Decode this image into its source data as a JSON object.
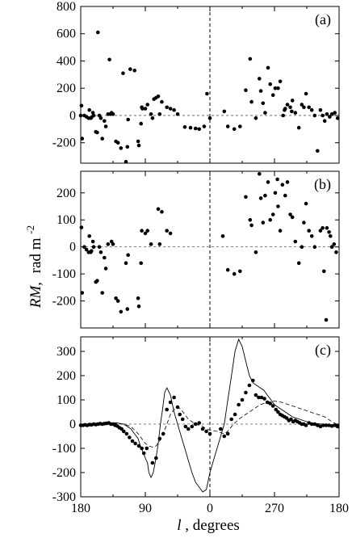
{
  "figure": {
    "y_axis_title_main": "RM,",
    "y_axis_title_unit": "rad m",
    "y_axis_title_exp": "-2",
    "x_axis_title_main": "l",
    "x_axis_title_rest": ", degrees"
  },
  "chart_data": [
    {
      "type": "scatter",
      "panel_label": "(a)",
      "xlabel": "l, degrees",
      "ylabel": "RM, rad m^-2",
      "x_ticks": [
        "180",
        "90",
        "0",
        "270",
        "180"
      ],
      "ylim": [
        -350,
        800
      ],
      "y_ticks": [
        -200,
        0,
        200,
        400,
        600,
        800
      ],
      "reference_lines": {
        "x": 0,
        "y": 0,
        "style": "dashed"
      },
      "points": [
        [
          179,
          72
        ],
        [
          178,
          -170
        ],
        [
          175,
          0
        ],
        [
          172,
          -10
        ],
        [
          169,
          -20
        ],
        [
          168,
          40
        ],
        [
          166,
          -20
        ],
        [
          165,
          -15
        ],
        [
          163,
          20
        ],
        [
          162,
          0
        ],
        [
          159,
          -120
        ],
        [
          157,
          -125
        ],
        [
          156,
          610
        ],
        [
          154,
          0
        ],
        [
          152,
          -20
        ],
        [
          150,
          -170
        ],
        [
          147,
          -40
        ],
        [
          145,
          -80
        ],
        [
          142,
          10
        ],
        [
          140,
          410
        ],
        [
          139,
          10
        ],
        [
          137,
          20
        ],
        [
          135,
          10
        ],
        [
          131,
          -190
        ],
        [
          128,
          -200
        ],
        [
          124,
          -240
        ],
        [
          121,
          310
        ],
        [
          117,
          -340
        ],
        [
          115,
          -230
        ],
        [
          114,
          -30
        ],
        [
          111,
          340
        ],
        [
          105,
          330
        ],
        [
          100,
          -190
        ],
        [
          99,
          -220
        ],
        [
          96,
          -60
        ],
        [
          95,
          60
        ],
        [
          94,
          50
        ],
        [
          90,
          50
        ],
        [
          87,
          80
        ],
        [
          82,
          10
        ],
        [
          80,
          -20
        ],
        [
          78,
          120
        ],
        [
          75,
          130
        ],
        [
          72,
          140
        ],
        [
          70,
          10
        ],
        [
          67,
          100
        ],
        [
          60,
          60
        ],
        [
          55,
          50
        ],
        [
          50,
          40
        ],
        [
          45,
          10
        ],
        [
          35,
          -85
        ],
        [
          27,
          -90
        ],
        [
          20,
          -95
        ],
        [
          15,
          -100
        ],
        [
          8,
          -80
        ],
        [
          4,
          160
        ],
        [
          0,
          -20
        ],
        [
          340,
          30
        ],
        [
          335,
          -80
        ],
        [
          326,
          -100
        ],
        [
          318,
          -80
        ],
        [
          310,
          185
        ],
        [
          304,
          415
        ],
        [
          302,
          100
        ],
        [
          296,
          -20
        ],
        [
          291,
          270
        ],
        [
          289,
          180
        ],
        [
          286,
          90
        ],
        [
          283,
          20
        ],
        [
          279,
          350
        ],
        [
          276,
          230
        ],
        [
          272,
          150
        ],
        [
          269,
          200
        ],
        [
          265,
          200
        ],
        [
          262,
          250
        ],
        [
          258,
          0
        ],
        [
          255,
          50
        ],
        [
          252,
          80
        ],
        [
          248,
          60
        ],
        [
          245,
          110
        ],
        [
          241,
          20
        ],
        [
          236,
          -90
        ],
        [
          232,
          80
        ],
        [
          229,
          60
        ],
        [
          226,
          160
        ],
        [
          222,
          60
        ],
        [
          218,
          40
        ],
        [
          214,
          0
        ],
        [
          210,
          -260
        ],
        [
          206,
          40
        ],
        [
          203,
          0
        ],
        [
          200,
          -40
        ],
        [
          197,
          10
        ],
        [
          193,
          -10
        ],
        [
          190,
          10
        ],
        [
          186,
          20
        ],
        [
          182,
          -20
        ],
        [
          180,
          0
        ],
        [
          256,
          40
        ],
        [
          246,
          30
        ]
      ]
    },
    {
      "type": "scatter",
      "panel_label": "(b)",
      "xlabel": "l, degrees",
      "ylabel": "RM, rad m^-2",
      "x_ticks": [
        "180",
        "90",
        "0",
        "270",
        "180"
      ],
      "ylim": [
        -300,
        280
      ],
      "y_ticks": [
        -200,
        -100,
        0,
        100,
        200
      ],
      "reference_lines": {
        "x": 0,
        "y": 0,
        "style": "dashed"
      },
      "points": [
        [
          179,
          72
        ],
        [
          178,
          -170
        ],
        [
          175,
          0
        ],
        [
          172,
          -10
        ],
        [
          169,
          -20
        ],
        [
          168,
          40
        ],
        [
          166,
          -20
        ],
        [
          165,
          -15
        ],
        [
          163,
          20
        ],
        [
          162,
          0
        ],
        [
          159,
          -130
        ],
        [
          157,
          -125
        ],
        [
          154,
          0
        ],
        [
          152,
          -20
        ],
        [
          150,
          -170
        ],
        [
          147,
          -40
        ],
        [
          145,
          -80
        ],
        [
          142,
          10
        ],
        [
          137,
          20
        ],
        [
          135,
          10
        ],
        [
          131,
          -190
        ],
        [
          128,
          -200
        ],
        [
          124,
          -240
        ],
        [
          117,
          -60
        ],
        [
          115,
          -230
        ],
        [
          114,
          -30
        ],
        [
          100,
          -190
        ],
        [
          99,
          -220
        ],
        [
          96,
          -60
        ],
        [
          95,
          60
        ],
        [
          90,
          50
        ],
        [
          87,
          60
        ],
        [
          82,
          10
        ],
        [
          72,
          140
        ],
        [
          70,
          10
        ],
        [
          67,
          130
        ],
        [
          60,
          60
        ],
        [
          55,
          50
        ],
        [
          342,
          40
        ],
        [
          335,
          -85
        ],
        [
          326,
          -100
        ],
        [
          318,
          -90
        ],
        [
          310,
          185
        ],
        [
          304,
          100
        ],
        [
          302,
          80
        ],
        [
          296,
          -20
        ],
        [
          291,
          270
        ],
        [
          289,
          180
        ],
        [
          286,
          90
        ],
        [
          283,
          190
        ],
        [
          279,
          240
        ],
        [
          276,
          100
        ],
        [
          272,
          120
        ],
        [
          269,
          200
        ],
        [
          266,
          250
        ],
        [
          265,
          150
        ],
        [
          262,
          60
        ],
        [
          259,
          230
        ],
        [
          255,
          190
        ],
        [
          252,
          240
        ],
        [
          248,
          120
        ],
        [
          245,
          110
        ],
        [
          241,
          20
        ],
        [
          236,
          -60
        ],
        [
          232,
          0
        ],
        [
          229,
          90
        ],
        [
          226,
          160
        ],
        [
          222,
          60
        ],
        [
          218,
          40
        ],
        [
          214,
          0
        ],
        [
          206,
          60
        ],
        [
          203,
          70
        ],
        [
          201,
          -90
        ],
        [
          198,
          -270
        ],
        [
          197,
          70
        ],
        [
          194,
          55
        ],
        [
          192,
          40
        ],
        [
          190,
          0
        ],
        [
          187,
          10
        ],
        [
          184,
          -20
        ]
      ]
    },
    {
      "type": "scatter",
      "panel_label": "(c)",
      "xlabel": "l, degrees",
      "ylabel": "RM, rad m^-2",
      "x_ticks": [
        "180",
        "90",
        "0",
        "270",
        "180"
      ],
      "ylim": [
        -300,
        360
      ],
      "y_ticks": [
        -300,
        -200,
        -100,
        0,
        100,
        200,
        300
      ],
      "reference_lines": {
        "x": 0,
        "y": 0,
        "style": "dashed"
      },
      "points": [
        [
          180,
          -5
        ],
        [
          177,
          -5
        ],
        [
          174,
          -3
        ],
        [
          171,
          -5
        ],
        [
          168,
          -2
        ],
        [
          165,
          -3
        ],
        [
          162,
          0
        ],
        [
          159,
          -2
        ],
        [
          156,
          0
        ],
        [
          153,
          2
        ],
        [
          150,
          0
        ],
        [
          147,
          2
        ],
        [
          144,
          3
        ],
        [
          141,
          5
        ],
        [
          138,
          0
        ],
        [
          135,
          0
        ],
        [
          132,
          -5
        ],
        [
          129,
          -8
        ],
        [
          126,
          -15
        ],
        [
          123,
          -20
        ],
        [
          120,
          -30
        ],
        [
          116,
          -40
        ],
        [
          112,
          -55
        ],
        [
          108,
          -70
        ],
        [
          104,
          -80
        ],
        [
          99,
          -90
        ],
        [
          95,
          -100
        ],
        [
          92,
          -120
        ],
        [
          88,
          -100
        ],
        [
          80,
          -160
        ],
        [
          75,
          -140
        ],
        [
          70,
          -60
        ],
        [
          65,
          -40
        ],
        [
          60,
          60
        ],
        [
          55,
          90
        ],
        [
          50,
          110
        ],
        [
          45,
          70
        ],
        [
          42,
          40
        ],
        [
          38,
          20
        ],
        [
          34,
          -10
        ],
        [
          30,
          -20
        ],
        [
          25,
          -10
        ],
        [
          20,
          0
        ],
        [
          15,
          5
        ],
        [
          10,
          -20
        ],
        [
          5,
          -30
        ],
        [
          0,
          -40
        ],
        [
          345,
          -20
        ],
        [
          340,
          -50
        ],
        [
          335,
          -40
        ],
        [
          330,
          20
        ],
        [
          325,
          40
        ],
        [
          320,
          80
        ],
        [
          315,
          100
        ],
        [
          310,
          130
        ],
        [
          305,
          160
        ],
        [
          300,
          180
        ],
        [
          296,
          120
        ],
        [
          292,
          110
        ],
        [
          288,
          110
        ],
        [
          284,
          105
        ],
        [
          280,
          90
        ],
        [
          276,
          85
        ],
        [
          272,
          75
        ],
        [
          268,
          60
        ],
        [
          265,
          50
        ],
        [
          262,
          40
        ],
        [
          259,
          35
        ],
        [
          256,
          30
        ],
        [
          253,
          25
        ],
        [
          250,
          15
        ],
        [
          247,
          20
        ],
        [
          244,
          10
        ],
        [
          241,
          15
        ],
        [
          238,
          10
        ],
        [
          235,
          5
        ],
        [
          232,
          0
        ],
        [
          229,
          0
        ],
        [
          226,
          -5
        ],
        [
          222,
          5
        ],
        [
          218,
          0
        ],
        [
          214,
          0
        ],
        [
          210,
          -5
        ],
        [
          206,
          -10
        ],
        [
          202,
          -5
        ],
        [
          198,
          -5
        ],
        [
          194,
          -5
        ],
        [
          190,
          -8
        ],
        [
          186,
          -5
        ],
        [
          182,
          -10
        ]
      ],
      "model_lines": [
        {
          "style": "solid",
          "x": [
            180,
            170,
            160,
            150,
            140,
            130,
            120,
            110,
            105,
            100,
            97,
            94,
            90,
            87,
            85,
            82,
            79,
            75,
            72,
            69,
            66,
            63,
            60,
            55,
            50,
            45,
            40,
            35,
            30,
            25,
            20,
            15,
            10,
            5,
            0,
            355,
            350,
            345,
            340,
            335,
            330,
            325,
            320,
            315,
            310,
            305,
            300,
            295,
            290,
            285,
            280,
            275,
            270,
            265,
            260,
            255,
            250,
            245,
            240,
            235,
            230,
            225,
            220,
            215,
            210,
            205,
            200,
            195,
            190,
            185,
            180
          ],
          "y": [
            0,
            0,
            0,
            2,
            5,
            5,
            0,
            -20,
            -40,
            -60,
            -90,
            -110,
            -140,
            -160,
            -200,
            -220,
            -200,
            -140,
            -80,
            0,
            60,
            130,
            150,
            120,
            50,
            0,
            -50,
            -100,
            -150,
            -200,
            -240,
            -260,
            -280,
            -270,
            -200,
            -150,
            -100,
            -50,
            0,
            100,
            200,
            300,
            350,
            320,
            260,
            200,
            170,
            160,
            150,
            140,
            120,
            100,
            80,
            70,
            60,
            50,
            40,
            30,
            25,
            20,
            15,
            10,
            5,
            3,
            2,
            0,
            -2,
            -3,
            -3,
            -3,
            -3
          ]
        },
        {
          "style": "dashed",
          "x": [
            180,
            160,
            140,
            120,
            110,
            100,
            95,
            90,
            85,
            80,
            75,
            70,
            65,
            60,
            55,
            50,
            45,
            40,
            35,
            30,
            25,
            20,
            15,
            10,
            5,
            0,
            350,
            345,
            340,
            335,
            330,
            320,
            310,
            300,
            290,
            280,
            270,
            260,
            250,
            240,
            230,
            220,
            210,
            200,
            190,
            180
          ],
          "y": [
            0,
            0,
            5,
            0,
            -10,
            -40,
            -60,
            -80,
            -90,
            -95,
            -90,
            -70,
            -40,
            0,
            40,
            60,
            70,
            60,
            40,
            20,
            10,
            0,
            -5,
            -10,
            -20,
            -25,
            -30,
            -35,
            -40,
            -30,
            -10,
            20,
            40,
            60,
            80,
            90,
            95,
            90,
            80,
            70,
            60,
            50,
            40,
            30,
            10,
            -5
          ]
        }
      ]
    }
  ]
}
